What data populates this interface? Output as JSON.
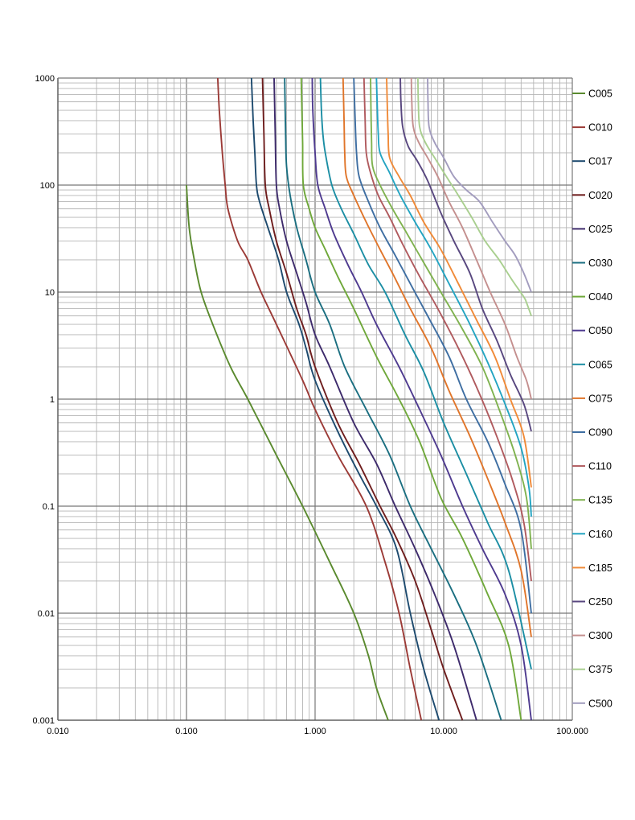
{
  "chart_data": {
    "type": "line",
    "title": "",
    "xlabel": "",
    "ylabel": "",
    "x_scale": "log",
    "y_scale": "log",
    "xlim": [
      0.01,
      100
    ],
    "ylim": [
      0.001,
      1000
    ],
    "grid": true,
    "legend_position": "right",
    "x_ticks": [
      "0.010",
      "0.100",
      "1.000",
      "10.000",
      "100.000"
    ],
    "y_ticks": [
      "1000",
      "100",
      "10",
      "1",
      "0.1",
      "0.01",
      "0.001"
    ],
    "series": [
      {
        "name": "C005",
        "color": "#5a8a2e",
        "points": [
          [
            0.1,
            100
          ],
          [
            0.105,
            40
          ],
          [
            0.115,
            20
          ],
          [
            0.13,
            10
          ],
          [
            0.16,
            5
          ],
          [
            0.22,
            2
          ],
          [
            0.3,
            1
          ],
          [
            0.5,
            0.3
          ],
          [
            0.8,
            0.1
          ],
          [
            1.3,
            0.03
          ],
          [
            2.0,
            0.01
          ],
          [
            2.6,
            0.004
          ],
          [
            3.0,
            0.002
          ],
          [
            3.7,
            0.001
          ]
        ]
      },
      {
        "name": "C010",
        "color": "#9b3a36",
        "points": [
          [
            0.175,
            1000
          ],
          [
            0.18,
            500
          ],
          [
            0.19,
            200
          ],
          [
            0.2,
            100
          ],
          [
            0.21,
            60
          ],
          [
            0.25,
            30
          ],
          [
            0.3,
            20
          ],
          [
            0.38,
            10
          ],
          [
            0.5,
            5
          ],
          [
            0.8,
            1.5
          ],
          [
            1.0,
            0.8
          ],
          [
            1.5,
            0.3
          ],
          [
            2.5,
            0.1
          ],
          [
            3.5,
            0.03
          ],
          [
            4.5,
            0.01
          ],
          [
            5.5,
            0.003
          ],
          [
            6.7,
            0.001
          ]
        ]
      },
      {
        "name": "C017",
        "color": "#1d4a6e",
        "points": [
          [
            0.32,
            1000
          ],
          [
            0.33,
            400
          ],
          [
            0.34,
            200
          ],
          [
            0.35,
            100
          ],
          [
            0.37,
            70
          ],
          [
            0.43,
            40
          ],
          [
            0.52,
            20
          ],
          [
            0.6,
            10
          ],
          [
            0.75,
            5
          ],
          [
            0.85,
            3
          ],
          [
            1.0,
            1.5
          ],
          [
            1.5,
            0.5
          ],
          [
            2.2,
            0.2
          ],
          [
            3.0,
            0.1
          ],
          [
            4.3,
            0.04
          ],
          [
            5.5,
            0.01
          ],
          [
            7.0,
            0.003
          ],
          [
            9.2,
            0.001
          ]
        ]
      },
      {
        "name": "C020",
        "color": "#6e1d1d",
        "points": [
          [
            0.39,
            1000
          ],
          [
            0.4,
            300
          ],
          [
            0.41,
            100
          ],
          [
            0.44,
            60
          ],
          [
            0.5,
            30
          ],
          [
            0.6,
            15
          ],
          [
            0.72,
            7
          ],
          [
            0.85,
            4
          ],
          [
            1.0,
            2
          ],
          [
            1.5,
            0.6
          ],
          [
            2.2,
            0.25
          ],
          [
            3.2,
            0.1
          ],
          [
            4.3,
            0.05
          ],
          [
            6,
            0.02
          ],
          [
            8,
            0.007
          ],
          [
            10,
            0.003
          ],
          [
            14,
            0.001
          ]
        ]
      },
      {
        "name": "C025",
        "color": "#3d2a6b",
        "points": [
          [
            0.48,
            1000
          ],
          [
            0.49,
            300
          ],
          [
            0.5,
            100
          ],
          [
            0.53,
            60
          ],
          [
            0.6,
            30
          ],
          [
            0.72,
            15
          ],
          [
            0.85,
            8
          ],
          [
            1.0,
            4
          ],
          [
            1.3,
            2
          ],
          [
            2.0,
            0.6
          ],
          [
            3.0,
            0.25
          ],
          [
            4.2,
            0.1
          ],
          [
            6.0,
            0.04
          ],
          [
            8.5,
            0.015
          ],
          [
            12,
            0.005
          ],
          [
            18,
            0.001
          ]
        ]
      },
      {
        "name": "C030",
        "color": "#1a6e80",
        "points": [
          [
            0.58,
            1000
          ],
          [
            0.59,
            300
          ],
          [
            0.6,
            150
          ],
          [
            0.64,
            80
          ],
          [
            0.72,
            40
          ],
          [
            0.85,
            20
          ],
          [
            1.0,
            10
          ],
          [
            1.3,
            5
          ],
          [
            1.7,
            2
          ],
          [
            2.5,
            0.8
          ],
          [
            3.8,
            0.3
          ],
          [
            5.5,
            0.1
          ],
          [
            8.0,
            0.04
          ],
          [
            12,
            0.015
          ],
          [
            18,
            0.005
          ],
          [
            28,
            0.001
          ]
        ]
      },
      {
        "name": "C040",
        "color": "#6fa83a",
        "points": [
          [
            0.78,
            1000
          ],
          [
            0.79,
            500
          ],
          [
            0.8,
            250
          ],
          [
            0.81,
            100
          ],
          [
            0.9,
            60
          ],
          [
            1.0,
            40
          ],
          [
            1.2,
            25
          ],
          [
            1.5,
            14
          ],
          [
            2.0,
            7
          ],
          [
            3.0,
            2.5
          ],
          [
            4.5,
            1
          ],
          [
            6.5,
            0.4
          ],
          [
            9.5,
            0.12
          ],
          [
            14,
            0.05
          ],
          [
            22,
            0.015
          ],
          [
            32,
            0.005
          ],
          [
            40,
            0.001
          ]
        ]
      },
      {
        "name": "C050",
        "color": "#4e3a8f",
        "points": [
          [
            0.95,
            1000
          ],
          [
            0.96,
            500
          ],
          [
            1.0,
            200
          ],
          [
            1.05,
            100
          ],
          [
            1.2,
            60
          ],
          [
            1.4,
            35
          ],
          [
            1.8,
            18
          ],
          [
            2.3,
            10
          ],
          [
            3.0,
            5
          ],
          [
            4.5,
            2
          ],
          [
            6.5,
            0.8
          ],
          [
            9.5,
            0.3
          ],
          [
            14,
            0.1
          ],
          [
            20,
            0.04
          ],
          [
            30,
            0.015
          ],
          [
            40,
            0.005
          ],
          [
            48,
            0.001
          ]
        ]
      },
      {
        "name": "C065",
        "color": "#1b8ea4",
        "points": [
          [
            1.1,
            1000
          ],
          [
            1.12,
            500
          ],
          [
            1.15,
            300
          ],
          [
            1.2,
            200
          ],
          [
            1.35,
            100
          ],
          [
            1.6,
            60
          ],
          [
            2.0,
            35
          ],
          [
            2.6,
            18
          ],
          [
            3.5,
            10
          ],
          [
            5,
            4
          ],
          [
            7,
            1.8
          ],
          [
            10,
            0.6
          ],
          [
            15,
            0.2
          ],
          [
            22,
            0.07
          ],
          [
            32,
            0.025
          ],
          [
            48,
            0.003
          ]
        ]
      },
      {
        "name": "C075",
        "color": "#e0752a",
        "points": [
          [
            1.65,
            1000
          ],
          [
            1.68,
            400
          ],
          [
            1.7,
            200
          ],
          [
            1.75,
            120
          ],
          [
            2.0,
            80
          ],
          [
            2.5,
            45
          ],
          [
            3.2,
            25
          ],
          [
            4.0,
            15
          ],
          [
            5.5,
            7
          ],
          [
            8,
            3
          ],
          [
            11,
            1.2
          ],
          [
            16,
            0.45
          ],
          [
            22,
            0.18
          ],
          [
            30,
            0.07
          ],
          [
            40,
            0.025
          ],
          [
            48,
            0.006
          ]
        ]
      },
      {
        "name": "C090",
        "color": "#3e6ea2",
        "points": [
          [
            2.0,
            1000
          ],
          [
            2.05,
            400
          ],
          [
            2.1,
            200
          ],
          [
            2.2,
            120
          ],
          [
            2.6,
            70
          ],
          [
            3.2,
            40
          ],
          [
            4.2,
            22
          ],
          [
            5.5,
            12
          ],
          [
            7.5,
            6
          ],
          [
            11,
            2.5
          ],
          [
            15,
            1
          ],
          [
            22,
            0.4
          ],
          [
            30,
            0.16
          ],
          [
            40,
            0.06
          ],
          [
            48,
            0.01
          ]
        ]
      },
      {
        "name": "C110",
        "color": "#b05a5e",
        "points": [
          [
            2.4,
            1000
          ],
          [
            2.45,
            400
          ],
          [
            2.5,
            200
          ],
          [
            2.7,
            130
          ],
          [
            3.1,
            80
          ],
          [
            3.8,
            50
          ],
          [
            4.8,
            28
          ],
          [
            6.5,
            14
          ],
          [
            9,
            7
          ],
          [
            13,
            3
          ],
          [
            18,
            1.3
          ],
          [
            25,
            0.5
          ],
          [
            34,
            0.18
          ],
          [
            42,
            0.07
          ],
          [
            48,
            0.02
          ]
        ]
      },
      {
        "name": "C135",
        "color": "#7fb24f",
        "points": [
          [
            2.7,
            1000
          ],
          [
            2.72,
            500
          ],
          [
            2.75,
            250
          ],
          [
            2.8,
            150
          ],
          [
            3.2,
            100
          ],
          [
            4.0,
            60
          ],
          [
            5.0,
            38
          ],
          [
            6.8,
            20
          ],
          [
            9.5,
            10
          ],
          [
            14,
            4.5
          ],
          [
            20,
            2
          ],
          [
            27,
            0.8
          ],
          [
            36,
            0.3
          ],
          [
            44,
            0.12
          ],
          [
            48,
            0.04
          ]
        ]
      },
      {
        "name": "C160",
        "color": "#23a4c2",
        "points": [
          [
            3.0,
            1000
          ],
          [
            3.05,
            500
          ],
          [
            3.1,
            300
          ],
          [
            3.2,
            200
          ],
          [
            3.8,
            130
          ],
          [
            4.6,
            80
          ],
          [
            6.0,
            45
          ],
          [
            8,
            25
          ],
          [
            11,
            12
          ],
          [
            16,
            5
          ],
          [
            22,
            2.2
          ],
          [
            30,
            0.9
          ],
          [
            40,
            0.35
          ],
          [
            46,
            0.15
          ],
          [
            48,
            0.08
          ]
        ]
      },
      {
        "name": "C185",
        "color": "#f08a38",
        "points": [
          [
            3.6,
            1000
          ],
          [
            3.65,
            500
          ],
          [
            3.7,
            300
          ],
          [
            3.8,
            180
          ],
          [
            4.5,
            120
          ],
          [
            5.5,
            80
          ],
          [
            7.0,
            45
          ],
          [
            9.5,
            25
          ],
          [
            13,
            12
          ],
          [
            18,
            5.5
          ],
          [
            25,
            2.5
          ],
          [
            33,
            1
          ],
          [
            42,
            0.45
          ],
          [
            48,
            0.15
          ]
        ]
      },
      {
        "name": "C250",
        "color": "#58477f",
        "points": [
          [
            4.6,
            1000
          ],
          [
            4.65,
            600
          ],
          [
            4.8,
            350
          ],
          [
            5.3,
            230
          ],
          [
            6.2,
            170
          ],
          [
            7.5,
            110
          ],
          [
            9.5,
            55
          ],
          [
            12,
            30
          ],
          [
            16,
            15
          ],
          [
            20,
            7
          ],
          [
            26,
            3.5
          ],
          [
            33,
            1.7
          ],
          [
            42,
            0.9
          ],
          [
            48,
            0.5
          ]
        ]
      },
      {
        "name": "C300",
        "color": "#c48f8e",
        "points": [
          [
            5.6,
            1000
          ],
          [
            5.65,
            600
          ],
          [
            5.8,
            350
          ],
          [
            6.4,
            250
          ],
          [
            7.5,
            180
          ],
          [
            9,
            120
          ],
          [
            11,
            70
          ],
          [
            14,
            40
          ],
          [
            18,
            20
          ],
          [
            23,
            10
          ],
          [
            30,
            5
          ],
          [
            37,
            2.5
          ],
          [
            44,
            1.5
          ],
          [
            48,
            1
          ]
        ]
      },
      {
        "name": "C375",
        "color": "#a9cf8f",
        "points": [
          [
            6.3,
            1000
          ],
          [
            6.35,
            600
          ],
          [
            6.5,
            350
          ],
          [
            7.2,
            250
          ],
          [
            8.5,
            180
          ],
          [
            10.5,
            120
          ],
          [
            13,
            80
          ],
          [
            16.5,
            50
          ],
          [
            21,
            30
          ],
          [
            27,
            20
          ],
          [
            34,
            13
          ],
          [
            42,
            9
          ],
          [
            44,
            8
          ],
          [
            48,
            6
          ]
        ]
      },
      {
        "name": "C500",
        "color": "#a29cbe",
        "points": [
          [
            7.5,
            1000
          ],
          [
            7.55,
            600
          ],
          [
            7.7,
            350
          ],
          [
            8.5,
            250
          ],
          [
            10,
            180
          ],
          [
            12,
            120
          ],
          [
            15,
            90
          ],
          [
            19,
            70
          ],
          [
            24,
            45
          ],
          [
            30,
            30
          ],
          [
            36,
            22
          ],
          [
            42,
            15
          ],
          [
            48,
            10
          ]
        ]
      }
    ]
  }
}
